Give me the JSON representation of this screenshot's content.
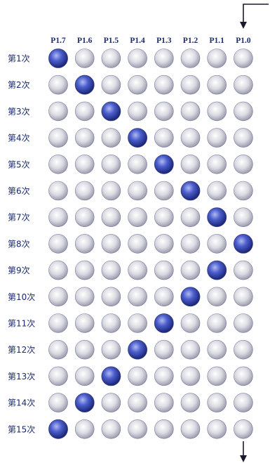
{
  "columns": [
    "P1.7",
    "P1.6",
    "P1.5",
    "P1.4",
    "P1.3",
    "P1.2",
    "P1.1",
    "P1.0"
  ],
  "rows": [
    {
      "label": "第1次",
      "on": 0
    },
    {
      "label": "第2次",
      "on": 1
    },
    {
      "label": "第3次",
      "on": 2
    },
    {
      "label": "第4次",
      "on": 3
    },
    {
      "label": "第5次",
      "on": 4
    },
    {
      "label": "第6次",
      "on": 5
    },
    {
      "label": "第7次",
      "on": 6
    },
    {
      "label": "第8次",
      "on": 7
    },
    {
      "label": "第9次",
      "on": 6
    },
    {
      "label": "第10次",
      "on": 5
    },
    {
      "label": "第11次",
      "on": 4
    },
    {
      "label": "第12次",
      "on": 3
    },
    {
      "label": "第13次",
      "on": 2
    },
    {
      "label": "第14次",
      "on": 1
    },
    {
      "label": "第15次",
      "on": 0
    }
  ],
  "colors": {
    "text": "#1a2a6c",
    "off_light": "#ffffff",
    "off_mid": "#d6d6de",
    "off_dark": "#9a9aaa",
    "on_light": "#aab4ee",
    "on_mid": "#4a5cc8",
    "on_dark": "#1e2a80",
    "rim": "#2a3470",
    "arrow": "#1a1a2e"
  }
}
